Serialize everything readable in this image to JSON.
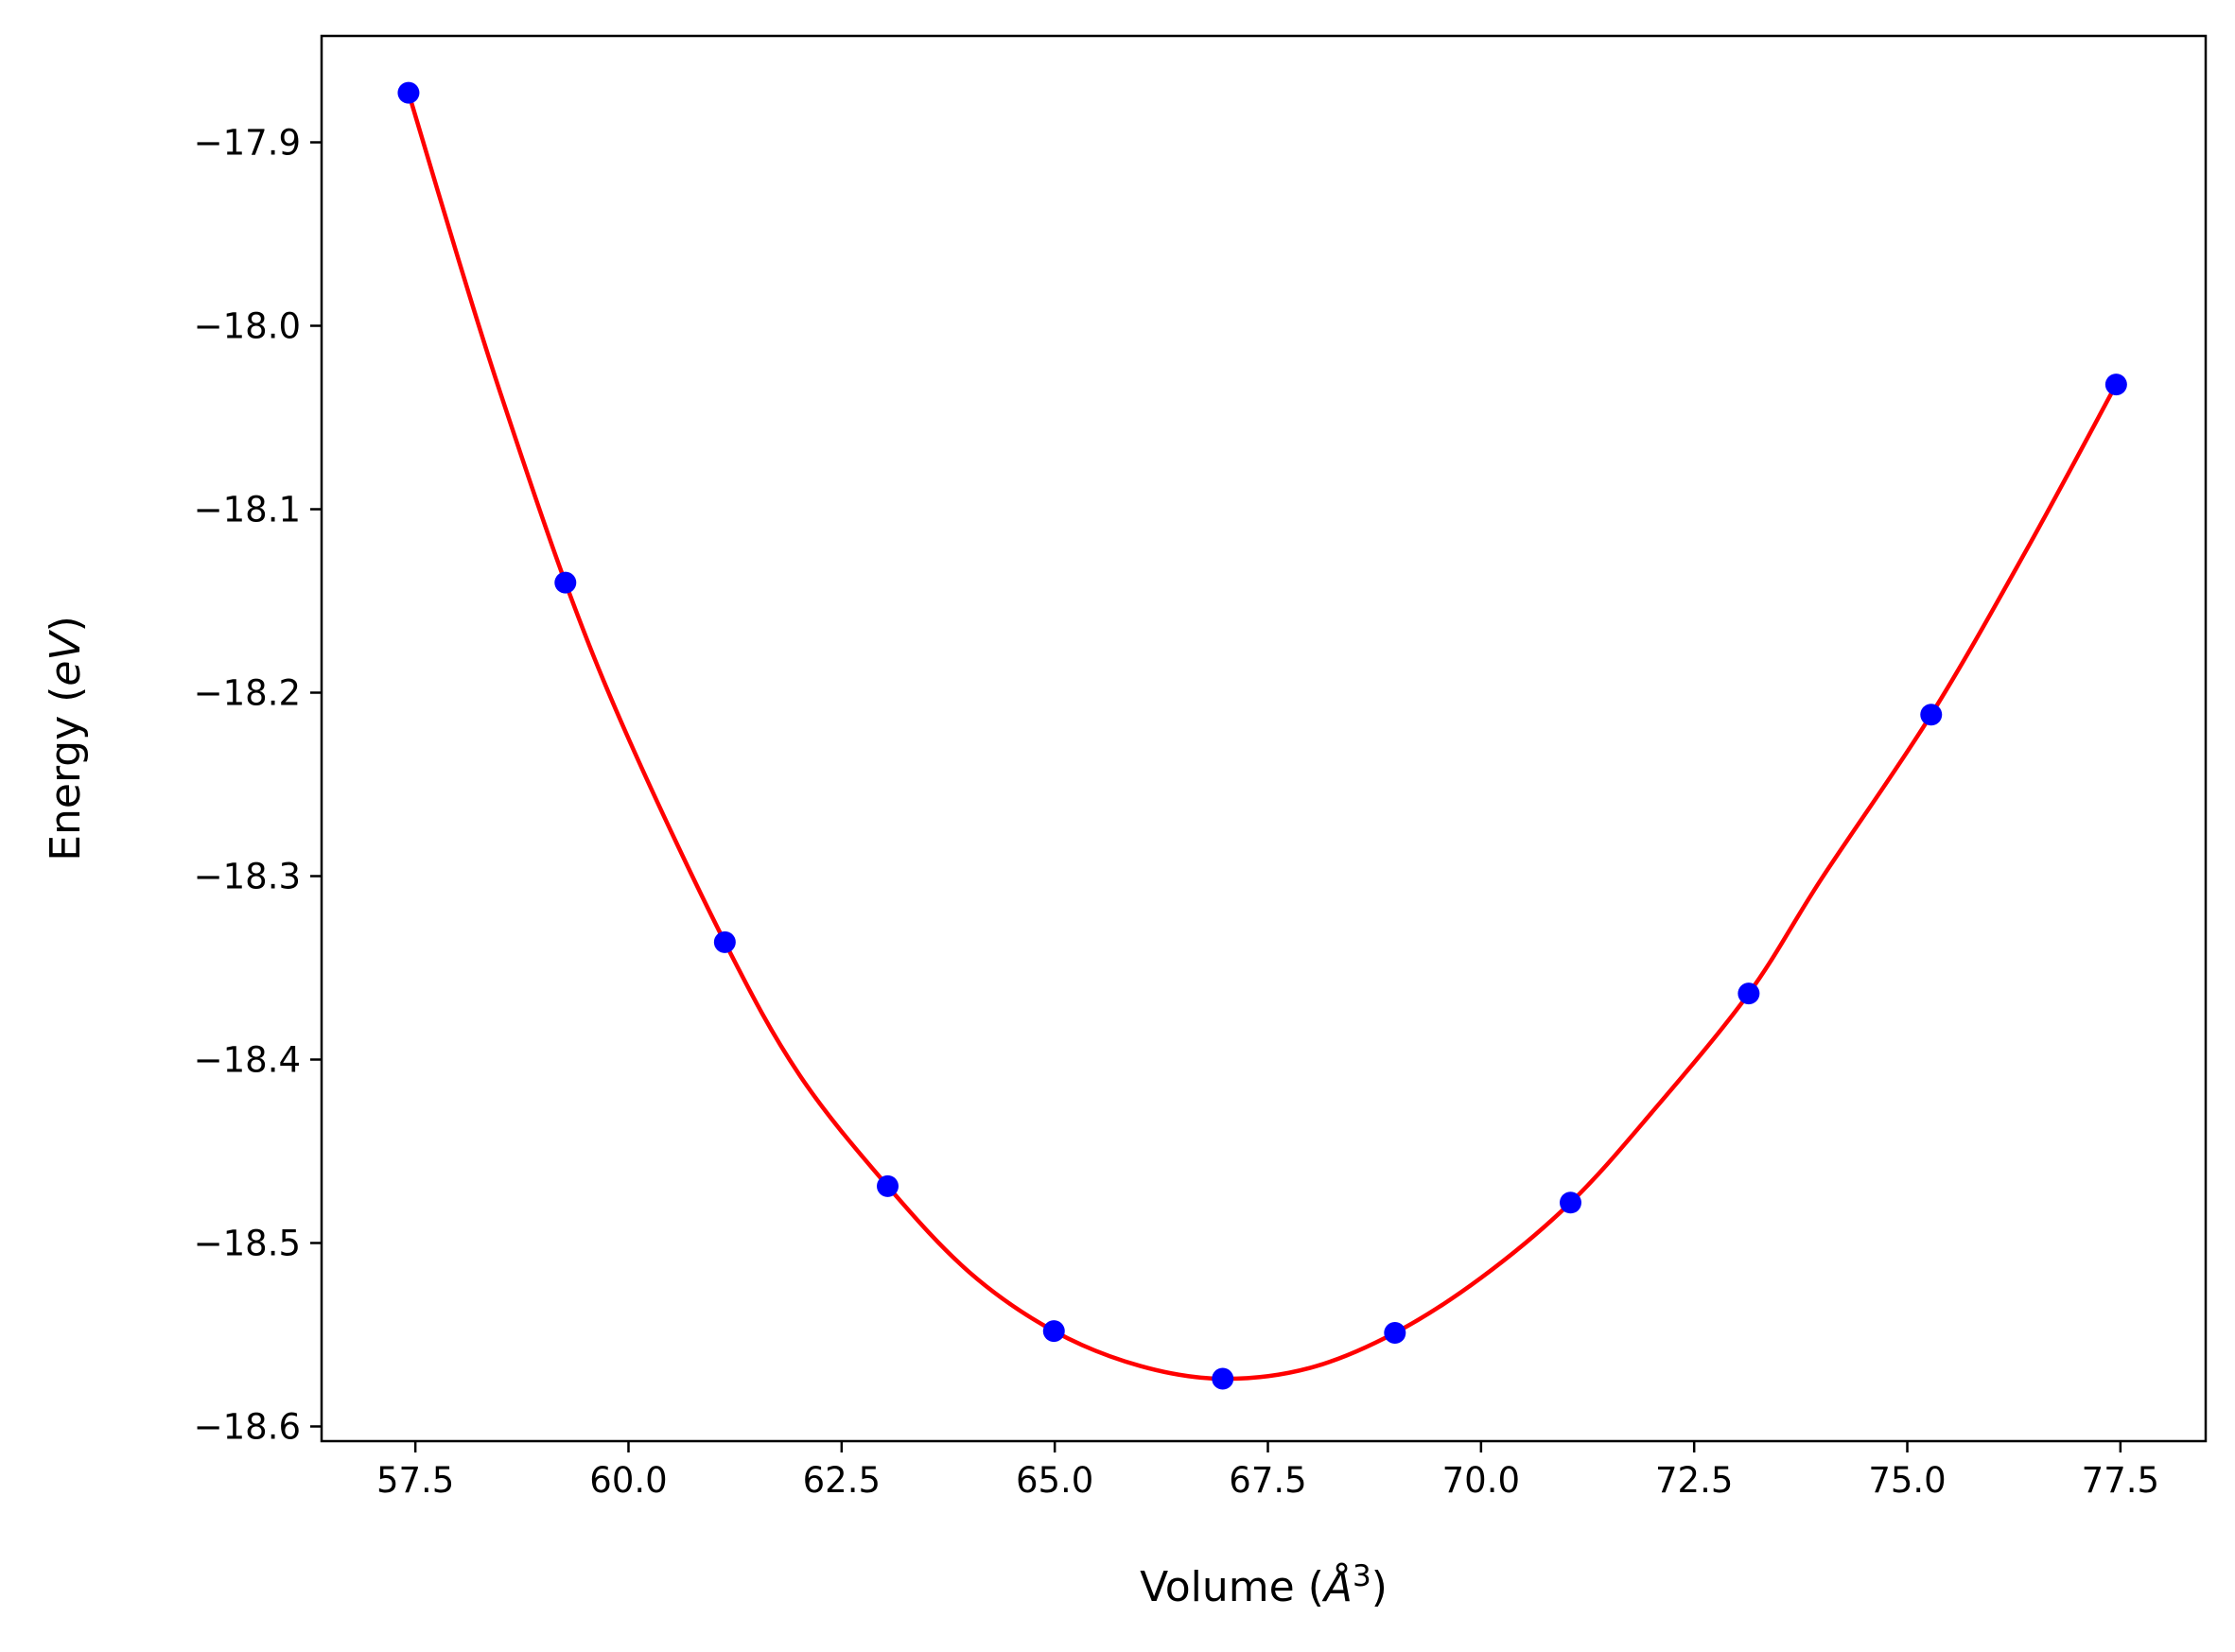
{
  "chart_data": {
    "type": "scatter",
    "title": "",
    "xlabel": "Volume (Å³)",
    "xlabel_parts": {
      "prefix": "Volume (",
      "symbol": "Å",
      "sup": "3",
      "suffix": ")"
    },
    "ylabel": "Energy (eV)",
    "ylabel_parts": {
      "prefix": "Energy (",
      "unit": "eV",
      "suffix": ")"
    },
    "xlim": [
      56.4,
      78.5
    ],
    "ylim": [
      -18.608,
      -17.842
    ],
    "xticks": [
      57.5,
      60.0,
      62.5,
      65.0,
      67.5,
      70.0,
      72.5,
      75.0,
      77.5
    ],
    "xtick_labels": [
      "57.5",
      "60.0",
      "62.5",
      "65.0",
      "67.5",
      "70.0",
      "72.5",
      "75.0",
      "77.5"
    ],
    "yticks": [
      -17.9,
      -18.0,
      -18.1,
      -18.2,
      -18.3,
      -18.4,
      -18.5,
      -18.6
    ],
    "ytick_labels": [
      "−17.9",
      "−18.0",
      "−18.1",
      "−18.2",
      "−18.3",
      "−18.4",
      "−18.5",
      "−18.6"
    ],
    "grid": false,
    "series": [
      {
        "kind": "markers",
        "color": "#0000ff",
        "x": [
          57.42,
          59.26,
          61.13,
          63.04,
          64.99,
          66.97,
          68.99,
          71.05,
          73.14,
          75.28,
          77.45
        ],
        "y": [
          -17.873,
          -18.14,
          -18.336,
          -18.469,
          -18.548,
          -18.574,
          -18.549,
          -18.478,
          -18.364,
          -18.212,
          -18.032
        ]
      },
      {
        "kind": "fit_line",
        "color": "#ff0000",
        "x": [
          57.42,
          58.0,
          58.5,
          59.26,
          60.0,
          61.13,
          62.0,
          63.04,
          64.0,
          64.99,
          66.0,
          66.97,
          68.0,
          68.99,
          70.0,
          71.05,
          72.0,
          73.14,
          74.0,
          75.28,
          76.4,
          77.45
        ],
        "y": [
          -17.873,
          -17.963,
          -18.037,
          -18.14,
          -18.225,
          -18.336,
          -18.408,
          -18.469,
          -18.516,
          -18.548,
          -18.567,
          -18.574,
          -18.568,
          -18.549,
          -18.519,
          -18.478,
          -18.429,
          -18.364,
          -18.301,
          -18.212,
          -18.122,
          -18.032
        ]
      }
    ]
  }
}
